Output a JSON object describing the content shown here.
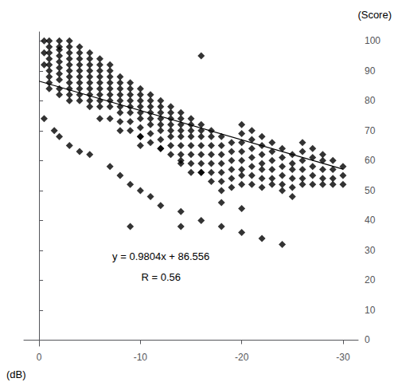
{
  "chart_data": {
    "type": "scatter",
    "xlabel": "(dB)",
    "ylabel": "(Score)",
    "annotations": [
      "y = 0.9804x + 86.556",
      "R = 0.56"
    ],
    "xlim": [
      1.5,
      -31.5
    ],
    "xticks": [
      0,
      -10,
      -20,
      -30
    ],
    "ylim": [
      -2,
      103
    ],
    "yticks": [
      0,
      10,
      20,
      30,
      40,
      50,
      60,
      70,
      80,
      90,
      100
    ],
    "grid": false,
    "series": [
      {
        "type": "scatter",
        "marker": "diamond",
        "color": "black",
        "x": [
          -0.5,
          -0.5,
          -0.5,
          -1,
          -1,
          -1,
          -1,
          -1,
          -1,
          -1,
          -1,
          -1,
          -2,
          -2,
          -2,
          -2,
          -2,
          -2,
          -2,
          -2,
          -2,
          -2,
          -3,
          -3,
          -3,
          -3,
          -3,
          -3,
          -3,
          -3,
          -3,
          -3,
          -3,
          -4,
          -4,
          -4,
          -4,
          -4,
          -4,
          -4,
          -4,
          -4,
          -4,
          -5,
          -5,
          -5,
          -5,
          -5,
          -5,
          -5,
          -5,
          -5,
          -5,
          -6,
          -6,
          -6,
          -6,
          -6,
          -6,
          -6,
          -6,
          -6,
          -7,
          -7,
          -7,
          -7,
          -7,
          -7,
          -7,
          -7,
          -7,
          -8,
          -8,
          -8,
          -8,
          -8,
          -8,
          -8,
          -8,
          -9,
          -9,
          -9,
          -9,
          -9,
          -9,
          -9,
          -9,
          -10,
          -10,
          -10,
          -10,
          -10,
          -10,
          -10,
          -10,
          -10,
          -11,
          -11,
          -11,
          -11,
          -11,
          -11,
          -11,
          -11,
          -12,
          -12,
          -12,
          -12,
          -12,
          -12,
          -12,
          -12,
          -13,
          -13,
          -13,
          -13,
          -13,
          -13,
          -13,
          -13,
          -14,
          -14,
          -14,
          -14,
          -14,
          -14,
          -14,
          -14,
          -15,
          -15,
          -15,
          -15,
          -15,
          -15,
          -15,
          -15,
          -16,
          -16,
          -16,
          -16,
          -16,
          -16,
          -16,
          -16,
          -17,
          -17,
          -17,
          -17,
          -17,
          -17,
          -17,
          -18,
          -18,
          -18,
          -18,
          -18,
          -18,
          -18,
          -19,
          -19,
          -19,
          -19,
          -19,
          -19,
          -20,
          -20,
          -20,
          -20,
          -20,
          -20,
          -20,
          -20,
          -21,
          -21,
          -21,
          -21,
          -21,
          -21,
          -21,
          -22,
          -22,
          -22,
          -22,
          -22,
          -22,
          -22,
          -23,
          -23,
          -23,
          -23,
          -23,
          -23,
          -24,
          -24,
          -24,
          -24,
          -24,
          -24,
          -24,
          -25,
          -25,
          -25,
          -25,
          -25,
          -25,
          -26,
          -26,
          -26,
          -26,
          -26,
          -26,
          -27,
          -27,
          -27,
          -27,
          -27,
          -28,
          -28,
          -28,
          -28,
          -28,
          -29,
          -29,
          -29,
          -29,
          -30,
          -30,
          -30,
          -0.5,
          -1.5,
          -2,
          -3,
          -4,
          -5,
          -7,
          -8,
          -9,
          -10,
          -11,
          -12,
          -14,
          -16,
          -18,
          -20,
          -22,
          -6,
          -8,
          -10,
          -12,
          -14,
          -16,
          -9,
          -14,
          -18,
          -20
        ],
        "values": [
          100,
          96,
          92,
          100,
          98,
          96,
          94,
          92,
          90,
          88,
          86,
          84,
          100,
          98,
          97,
          95,
          93,
          91,
          89,
          87,
          84,
          82,
          100,
          98,
          96,
          94,
          92,
          90,
          88,
          86,
          84,
          82,
          80,
          98,
          96,
          94,
          92,
          90,
          88,
          86,
          84,
          82,
          80,
          96,
          94,
          92,
          90,
          88,
          86,
          84,
          82,
          80,
          78,
          94,
          92,
          90,
          88,
          86,
          84,
          82,
          80,
          78,
          92,
          90,
          88,
          86,
          84,
          82,
          80,
          78,
          74,
          88,
          86,
          84,
          82,
          80,
          78,
          76,
          73,
          86,
          84,
          82,
          80,
          78,
          76,
          73,
          70,
          84,
          82,
          80,
          78,
          76,
          74,
          71,
          68,
          65,
          82,
          80,
          78,
          76,
          74,
          72,
          69,
          66,
          80,
          78,
          76,
          74,
          72,
          70,
          67,
          64,
          78,
          76,
          74,
          72,
          70,
          68,
          65,
          62,
          76,
          74,
          72,
          70,
          68,
          65,
          62,
          59,
          74,
          72,
          70,
          68,
          65,
          62,
          59,
          56,
          95,
          72,
          70,
          68,
          65,
          62,
          59,
          56,
          70,
          68,
          65,
          62,
          59,
          56,
          53,
          68,
          65,
          62,
          59,
          56,
          53,
          50,
          66,
          63,
          60,
          57,
          54,
          51,
          72,
          69,
          66,
          63,
          60,
          57,
          55,
          52,
          70,
          67,
          64,
          61,
          58,
          55,
          52,
          68,
          65,
          62,
          59,
          57,
          54,
          51,
          66,
          63,
          60,
          57,
          54,
          52,
          64,
          61,
          58,
          55,
          52,
          50,
          32,
          62,
          59,
          57,
          54,
          51,
          48,
          66,
          63,
          60,
          57,
          54,
          52,
          64,
          61,
          58,
          55,
          52,
          62,
          60,
          57,
          54,
          52,
          60,
          57,
          54,
          52,
          58,
          55,
          52,
          74,
          70,
          68,
          65,
          63,
          62,
          58,
          55,
          52,
          50,
          48,
          45,
          43,
          40,
          38,
          36,
          34,
          74,
          70,
          68,
          64,
          60,
          56,
          38,
          38,
          46,
          44
        ]
      },
      {
        "type": "line",
        "line_style": "solid",
        "color": "black",
        "x": [
          0,
          -30
        ],
        "values": [
          86.556,
          57.144
        ]
      }
    ]
  }
}
